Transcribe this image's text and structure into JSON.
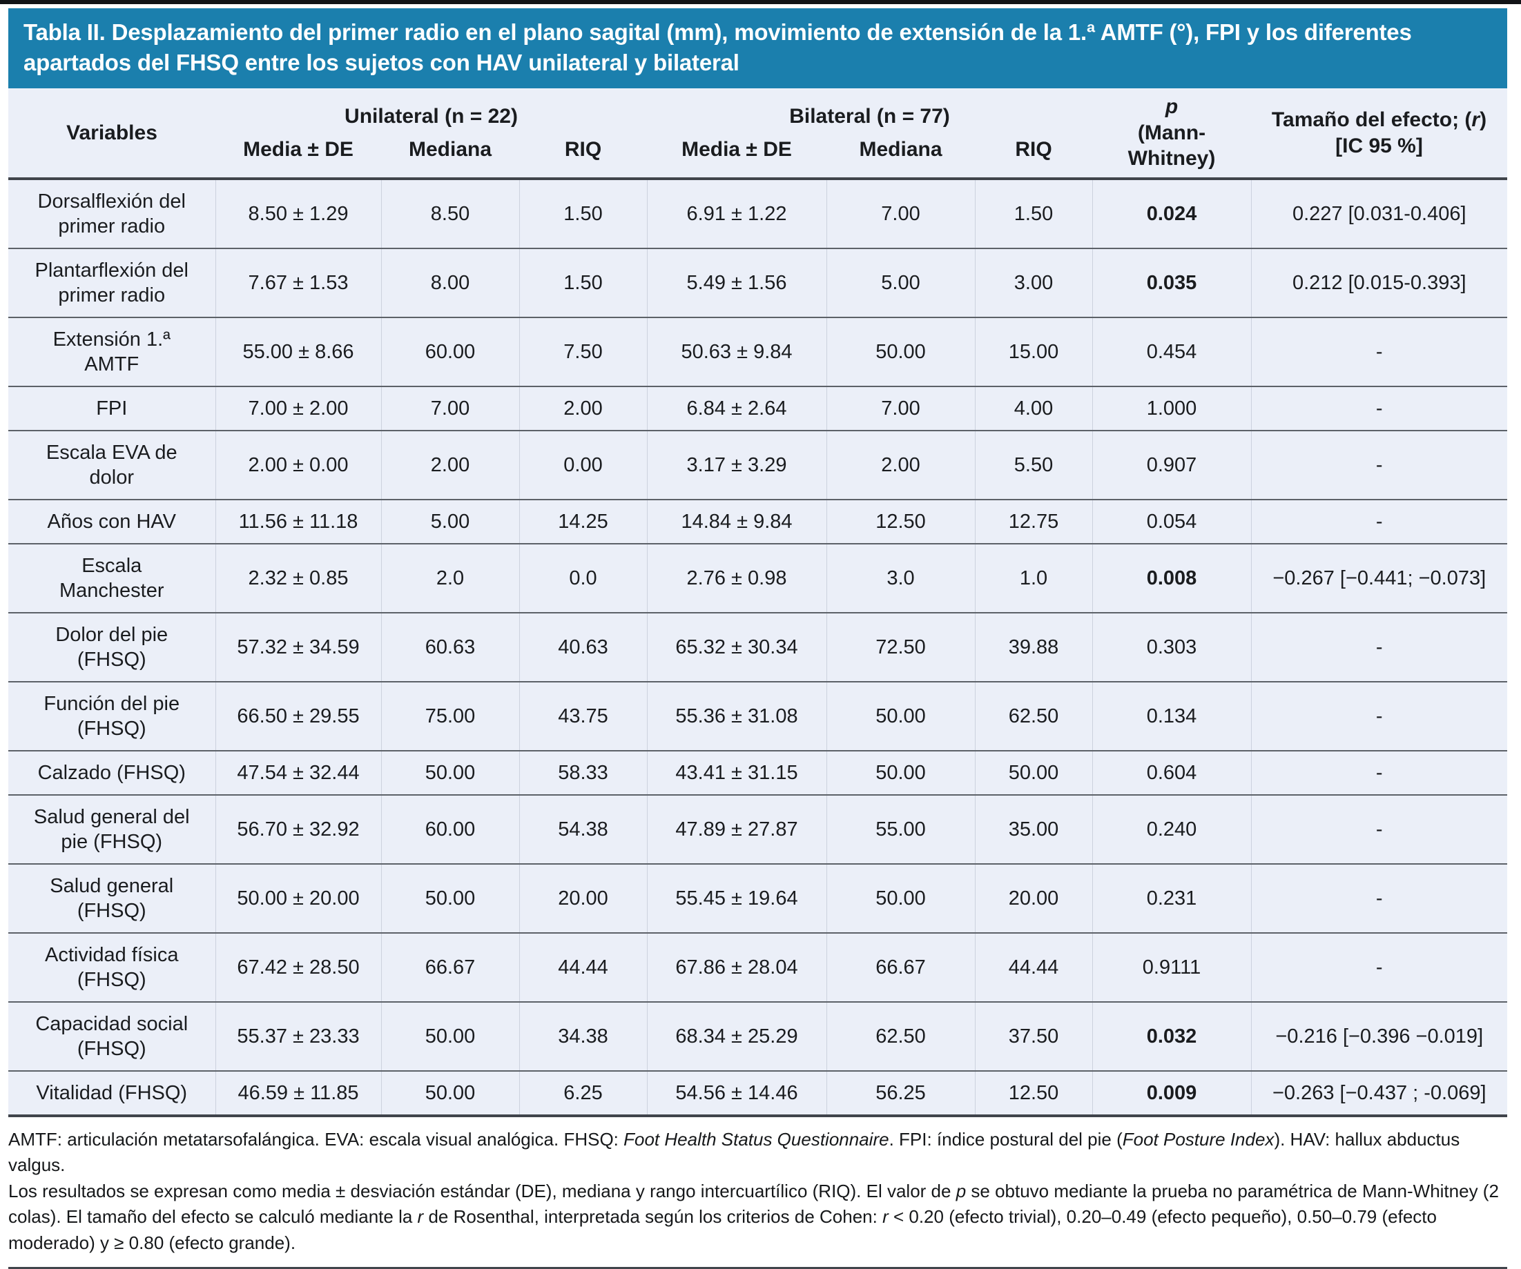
{
  "colors": {
    "header_bg": "#1b7fad",
    "table_bg": "#ebeff8",
    "title_text": "#ffffff"
  },
  "table": {
    "title": "Tabla II. Desplazamiento del primer radio en el plano sagital (mm), movimiento de extensión de la 1.ª AMTF (°), FPI y los diferentes apartados del FHSQ entre los sujetos con HAV unilateral y bilateral",
    "header": {
      "variables": "Variables",
      "unilateral": "Unilateral (n = 22)",
      "bilateral": "Bilateral (n = 77)",
      "sub_headers": [
        "Media ± DE",
        "Mediana",
        "RIQ"
      ],
      "p_line1": "p",
      "p_line2": "(Mann-Whitney)",
      "effect_line1_segments": [
        {
          "t": "Tamaño del efecto; ("
        },
        {
          "t": "r",
          "i": true
        },
        {
          "t": ")"
        }
      ],
      "effect_line2": "[IC 95 %]"
    },
    "rows": [
      {
        "variable": "Dorsalflexión del primer radio",
        "uni_media": "8.50 ± 1.29",
        "uni_mediana": "8.50",
        "uni_riq": "1.50",
        "bi_media": "6.91 ± 1.22",
        "bi_mediana": "7.00",
        "bi_riq": "1.50",
        "p": "0.024",
        "p_bold": true,
        "effect": "0.227 [0.031-0.406]"
      },
      {
        "variable": "Plantarflexión del primer radio",
        "uni_media": "7.67 ± 1.53",
        "uni_mediana": "8.00",
        "uni_riq": "1.50",
        "bi_media": "5.49 ± 1.56",
        "bi_mediana": "5.00",
        "bi_riq": "3.00",
        "p": "0.035",
        "p_bold": true,
        "effect": "0.212 [0.015-0.393]"
      },
      {
        "variable": "Extensión 1.ª AMTF",
        "uni_media": "55.00 ± 8.66",
        "uni_mediana": "60.00",
        "uni_riq": "7.50",
        "bi_media": "50.63 ± 9.84",
        "bi_mediana": "50.00",
        "bi_riq": "15.00",
        "p": "0.454",
        "p_bold": false,
        "effect": "-"
      },
      {
        "variable": "FPI",
        "uni_media": "7.00 ± 2.00",
        "uni_mediana": "7.00",
        "uni_riq": "2.00",
        "bi_media": "6.84 ± 2.64",
        "bi_mediana": "7.00",
        "bi_riq": "4.00",
        "p": "1.000",
        "p_bold": false,
        "effect": "-"
      },
      {
        "variable": "Escala EVA de dolor",
        "uni_media": "2.00 ± 0.00",
        "uni_mediana": "2.00",
        "uni_riq": "0.00",
        "bi_media": "3.17 ± 3.29",
        "bi_mediana": "2.00",
        "bi_riq": "5.50",
        "p": "0.907",
        "p_bold": false,
        "effect": "-"
      },
      {
        "variable": "Años con HAV",
        "uni_media": "11.56 ± 11.18",
        "uni_mediana": "5.00",
        "uni_riq": "14.25",
        "bi_media": "14.84 ± 9.84",
        "bi_mediana": "12.50",
        "bi_riq": "12.75",
        "p": "0.054",
        "p_bold": false,
        "effect": "-"
      },
      {
        "variable": "Escala Manchester",
        "uni_media": "2.32 ± 0.85",
        "uni_mediana": "2.0",
        "uni_riq": "0.0",
        "bi_media": "2.76 ± 0.98",
        "bi_mediana": "3.0",
        "bi_riq": "1.0",
        "p": "0.008",
        "p_bold": true,
        "effect": "−0.267 [−0.441; −0.073]"
      },
      {
        "variable": "Dolor del pie (FHSQ)",
        "uni_media": "57.32 ± 34.59",
        "uni_mediana": "60.63",
        "uni_riq": "40.63",
        "bi_media": "65.32 ± 30.34",
        "bi_mediana": "72.50",
        "bi_riq": "39.88",
        "p": "0.303",
        "p_bold": false,
        "effect": "-"
      },
      {
        "variable": "Función del pie (FHSQ)",
        "uni_media": "66.50 ± 29.55",
        "uni_mediana": "75.00",
        "uni_riq": "43.75",
        "bi_media": "55.36 ± 31.08",
        "bi_mediana": "50.00",
        "bi_riq": "62.50",
        "p": "0.134",
        "p_bold": false,
        "effect": "-"
      },
      {
        "variable": "Calzado (FHSQ)",
        "uni_media": "47.54 ± 32.44",
        "uni_mediana": "50.00",
        "uni_riq": "58.33",
        "bi_media": "43.41 ± 31.15",
        "bi_mediana": "50.00",
        "bi_riq": "50.00",
        "p": "0.604",
        "p_bold": false,
        "effect": "-"
      },
      {
        "variable": "Salud general del pie (FHSQ)",
        "uni_media": "56.70 ± 32.92",
        "uni_mediana": "60.00",
        "uni_riq": "54.38",
        "bi_media": "47.89 ± 27.87",
        "bi_mediana": "55.00",
        "bi_riq": "35.00",
        "p": "0.240",
        "p_bold": false,
        "effect": "-"
      },
      {
        "variable": "Salud general (FHSQ)",
        "uni_media": "50.00 ± 20.00",
        "uni_mediana": "50.00",
        "uni_riq": "20.00",
        "bi_media": "55.45 ± 19.64",
        "bi_mediana": "50.00",
        "bi_riq": "20.00",
        "p": "0.231",
        "p_bold": false,
        "effect": "-"
      },
      {
        "variable": "Actividad física (FHSQ)",
        "uni_media": "67.42 ± 28.50",
        "uni_mediana": "66.67",
        "uni_riq": "44.44",
        "bi_media": "67.86 ± 28.04",
        "bi_mediana": "66.67",
        "bi_riq": "44.44",
        "p": "0.9111",
        "p_bold": false,
        "effect": "-"
      },
      {
        "variable": "Capacidad social (FHSQ)",
        "uni_media": "55.37 ± 23.33",
        "uni_mediana": "50.00",
        "uni_riq": "34.38",
        "bi_media": "68.34 ± 25.29",
        "bi_mediana": "62.50",
        "bi_riq": "37.50",
        "p": "0.032",
        "p_bold": true,
        "effect": "−0.216 [−0.396 −0.019]"
      },
      {
        "variable": "Vitalidad (FHSQ)",
        "uni_media": "46.59 ± 11.85",
        "uni_mediana": "50.00",
        "uni_riq": "6.25",
        "bi_media": "54.56 ± 14.46",
        "bi_mediana": "56.25",
        "bi_riq": "12.50",
        "p": "0.009",
        "p_bold": true,
        "effect": "−0.263 [−0.437 ; -0.069]"
      }
    ],
    "footnotes": [
      [
        {
          "t": "AMTF: articulación metatarsofalángica. EVA: escala visual analógica. FHSQ: "
        },
        {
          "t": "Foot Health Status Questionnaire",
          "i": true
        },
        {
          "t": ". FPI: índice postural del pie ("
        },
        {
          "t": "Foot Posture Index",
          "i": true
        },
        {
          "t": "). HAV: hallux abductus valgus."
        }
      ],
      [
        {
          "t": "Los resultados se expresan como media ± desviación estándar (DE), mediana y rango intercuartílico (RIQ). El valor de "
        },
        {
          "t": "p",
          "i": true
        },
        {
          "t": " se obtuvo mediante la prueba no paramétrica de Mann-Whitney (2 colas). El tamaño del efecto se calculó mediante la "
        },
        {
          "t": "r",
          "i": true
        },
        {
          "t": " de Rosenthal, interpretada según los criterios de Cohen: "
        },
        {
          "t": "r",
          "i": true
        },
        {
          "t": " < 0.20 (efecto trivial), 0.20–0.49 (efecto pequeño), 0.50–0.79 (efecto moderado) y ≥ 0.80 (efecto grande)."
        }
      ]
    ]
  }
}
